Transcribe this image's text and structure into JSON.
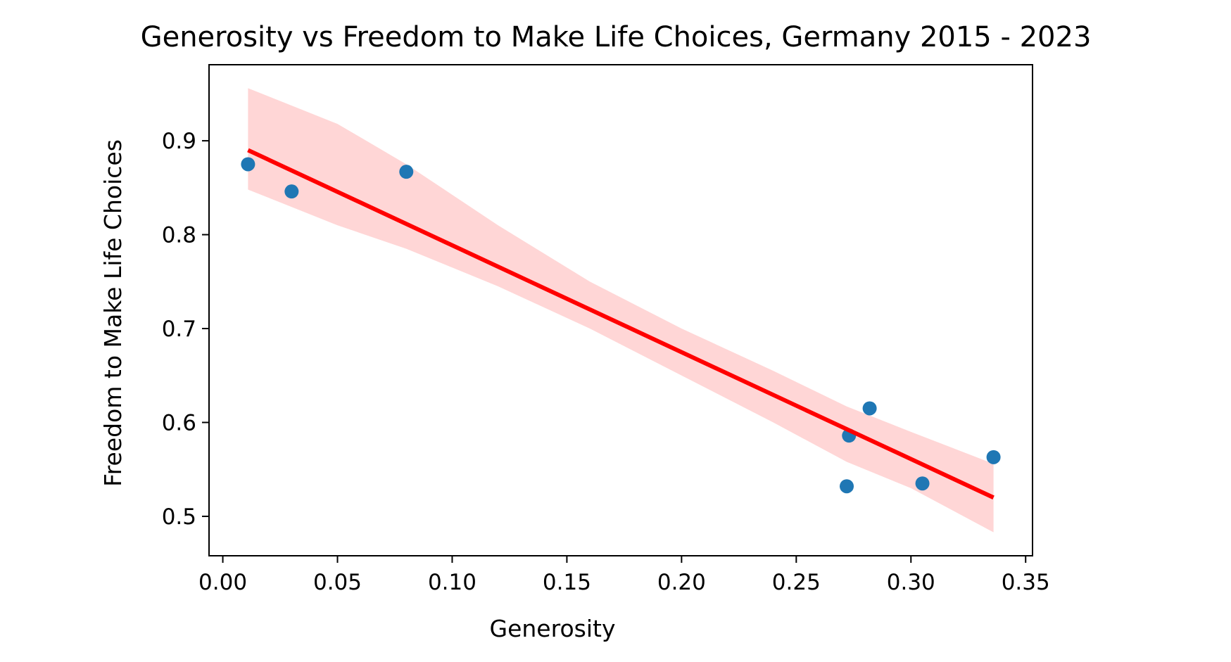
{
  "chart_data": {
    "type": "scatter",
    "title": "Generosity vs Freedom to Make Life Choices, Germany 2015 - 2023",
    "xlabel": "Generosity",
    "ylabel": "Freedom to Make Life Choices",
    "xlim": [
      -0.006,
      0.353
    ],
    "ylim": [
      0.458,
      0.981
    ],
    "x_ticks": [
      0.0,
      0.05,
      0.1,
      0.15,
      0.2,
      0.25,
      0.3,
      0.35
    ],
    "x_tick_labels": [
      "0.00",
      "0.05",
      "0.10",
      "0.15",
      "0.20",
      "0.25",
      "0.30",
      "0.35"
    ],
    "y_ticks": [
      0.5,
      0.6,
      0.7,
      0.8,
      0.9
    ],
    "y_tick_labels": [
      "0.5",
      "0.6",
      "0.7",
      "0.8",
      "0.9"
    ],
    "grid": false,
    "legend": "none",
    "points": [
      {
        "x": 0.011,
        "y": 0.875
      },
      {
        "x": 0.03,
        "y": 0.846
      },
      {
        "x": 0.08,
        "y": 0.867
      },
      {
        "x": 0.272,
        "y": 0.532
      },
      {
        "x": 0.273,
        "y": 0.586
      },
      {
        "x": 0.282,
        "y": 0.615
      },
      {
        "x": 0.305,
        "y": 0.535
      },
      {
        "x": 0.336,
        "y": 0.563
      }
    ],
    "regression_line": {
      "x": [
        0.011,
        0.336
      ],
      "y": [
        0.89,
        0.52
      ]
    },
    "confidence_band": {
      "x": [
        0.011,
        0.05,
        0.08,
        0.12,
        0.16,
        0.2,
        0.24,
        0.272,
        0.3,
        0.336
      ],
      "upper": [
        0.956,
        0.918,
        0.875,
        0.81,
        0.75,
        0.7,
        0.655,
        0.617,
        0.59,
        0.556
      ],
      "lower": [
        0.848,
        0.81,
        0.785,
        0.745,
        0.7,
        0.65,
        0.6,
        0.558,
        0.53,
        0.483
      ]
    },
    "colors": {
      "points": "#1f77b4",
      "line": "#ff0000",
      "band": "#ffd6d6",
      "axes": "#000000"
    }
  }
}
